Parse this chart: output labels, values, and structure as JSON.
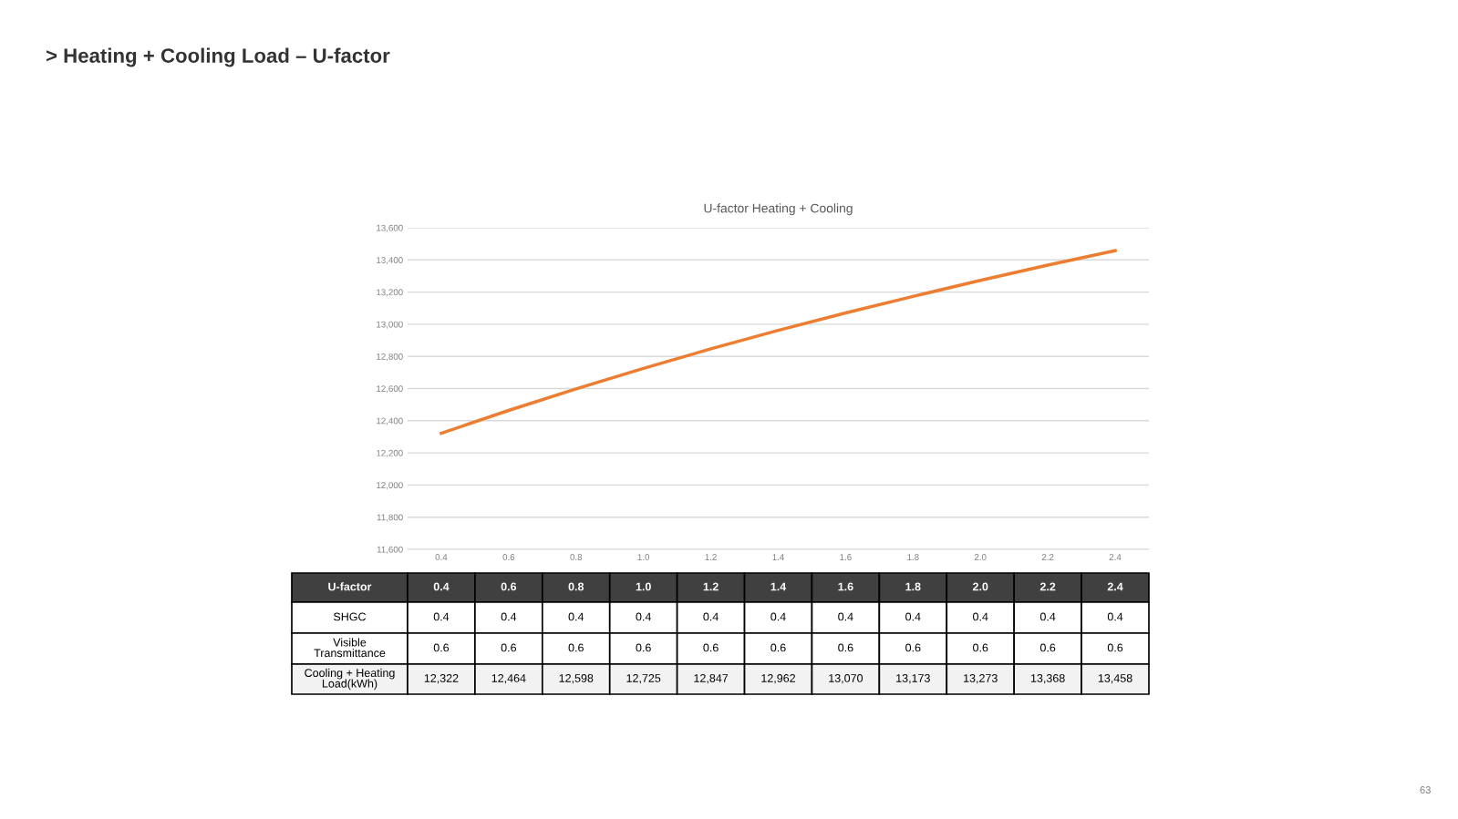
{
  "chart_data": {
    "type": "line",
    "title": "> Heating + Cooling Load – U-factor",
    "subtitle": "U-factor Heating + Cooling",
    "x": [
      0.4,
      0.6,
      0.8,
      1.0,
      1.2,
      1.4,
      1.6,
      1.8,
      2.0,
      2.2,
      2.4
    ],
    "series": [
      {
        "color": "#ed7d31",
        "values": [
          12322,
          12464,
          12598,
          12725,
          12847,
          12962,
          13070,
          13173,
          13273,
          13368,
          13458
        ]
      }
    ],
    "xlim": [
      0.3,
      2.5
    ],
    "xticks": [
      {
        "value": 0.4,
        "label": "0.4"
      },
      {
        "value": 0.6,
        "label": "0.6"
      },
      {
        "value": 0.8,
        "label": "0.8"
      },
      {
        "value": 1.0,
        "label": "1.0"
      },
      {
        "value": 1.2,
        "label": "1.2"
      },
      {
        "value": 1.4,
        "label": "1.4"
      },
      {
        "value": 1.6,
        "label": "1.6"
      },
      {
        "value": 1.8,
        "label": "1.8"
      },
      {
        "value": 2.0,
        "label": "2.0"
      },
      {
        "value": 2.2,
        "label": "2.2"
      },
      {
        "value": 2.4,
        "label": "2.4"
      }
    ],
    "ylim": [
      11600,
      13600
    ],
    "yticks": [
      {
        "value": 11600,
        "label": "11,600"
      },
      {
        "value": 11800,
        "label": "11,800"
      },
      {
        "value": 12000,
        "label": "12,000"
      },
      {
        "value": 12200,
        "label": "12,200"
      },
      {
        "value": 12400,
        "label": "12,400"
      },
      {
        "value": 12600,
        "label": "12,600"
      },
      {
        "value": 12800,
        "label": "12,800"
      },
      {
        "value": 13000,
        "label": "13,000"
      },
      {
        "value": 13200,
        "label": "13,200"
      },
      {
        "value": 13400,
        "label": "13,400"
      },
      {
        "value": 13600,
        "label": "13,600"
      }
    ],
    "grid": "y",
    "legend": false,
    "marker": "none",
    "line_style": "solid",
    "annotations": [
      "U-factor",
      "SHGC",
      "0.4",
      "0.4",
      "0.4",
      "0.4",
      "0.4",
      "0.4",
      "0.4",
      "0.4",
      "0.4",
      "0.4",
      "0.4",
      "Visible Transmittance",
      "0.6",
      "0.6",
      "0.6",
      "0.6",
      "0.6",
      "0.6",
      "0.6",
      "0.6",
      "0.6",
      "0.6",
      "0.6",
      "Cooling + Heating Load(kWh)",
      "12,322",
      "12,464",
      "12,598",
      "12,725",
      "12,847",
      "12,962",
      "13,070",
      "13,173",
      "13,273",
      "13,368",
      "13,458",
      "63"
    ]
  }
}
